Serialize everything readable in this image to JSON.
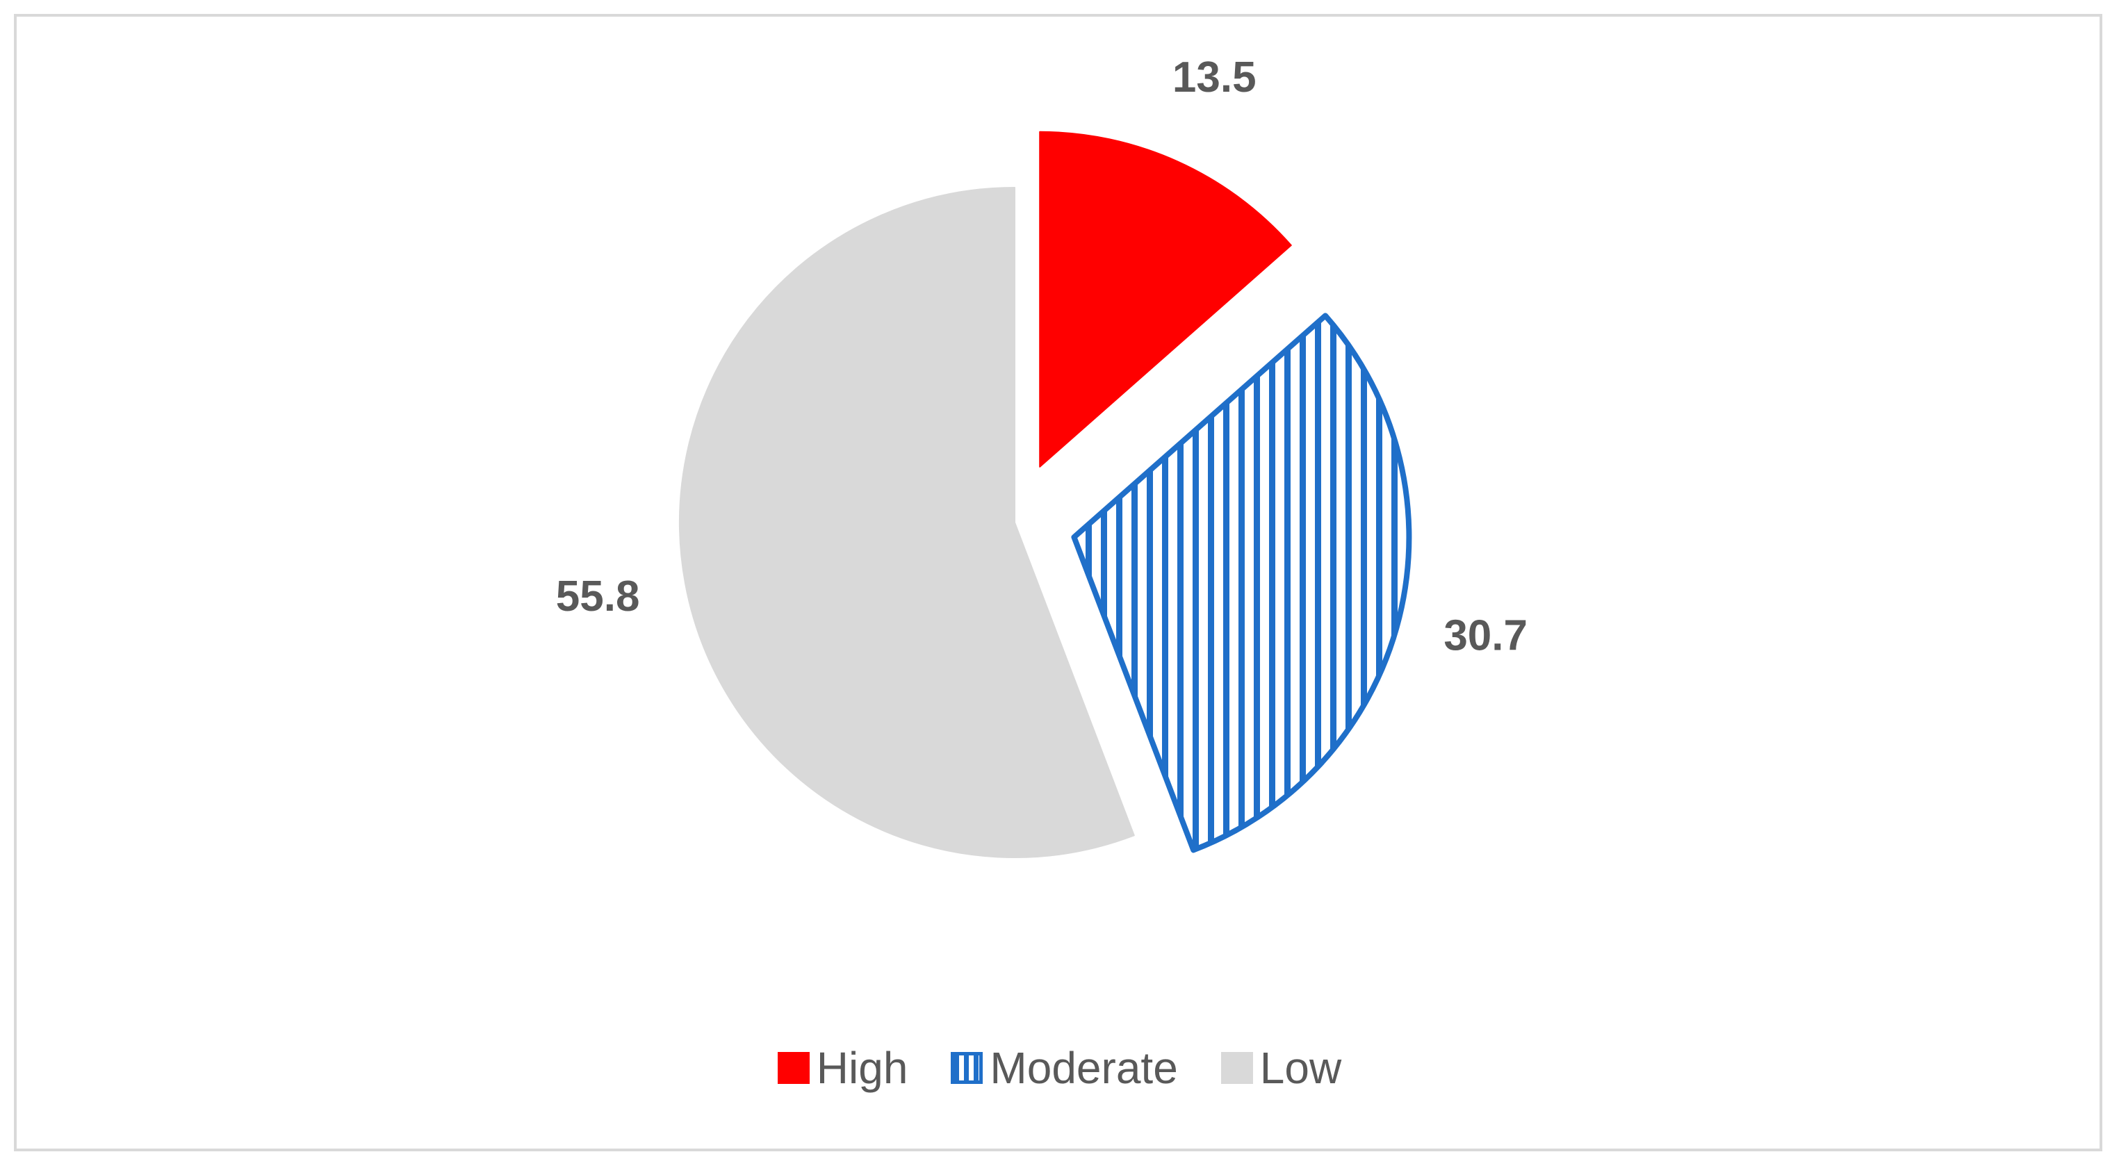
{
  "chart_data": {
    "type": "pie",
    "title": "",
    "categories": [
      "High",
      "Moderate",
      "Low"
    ],
    "values": [
      13.5,
      30.7,
      55.8
    ],
    "labels": [
      "13.5",
      "30.7",
      "55.8"
    ],
    "colors": [
      "#ff0000",
      "#1f6fc9",
      "#d9d9d9"
    ],
    "fills": [
      "solid",
      "vertical-hatch",
      "solid"
    ],
    "start_angle": "12 o'clock",
    "direction": "clockwise",
    "exploded": [
      true,
      true,
      false
    ],
    "legend": {
      "position": "bottom",
      "entries": [
        "High",
        "Moderate",
        "Low"
      ]
    }
  }
}
